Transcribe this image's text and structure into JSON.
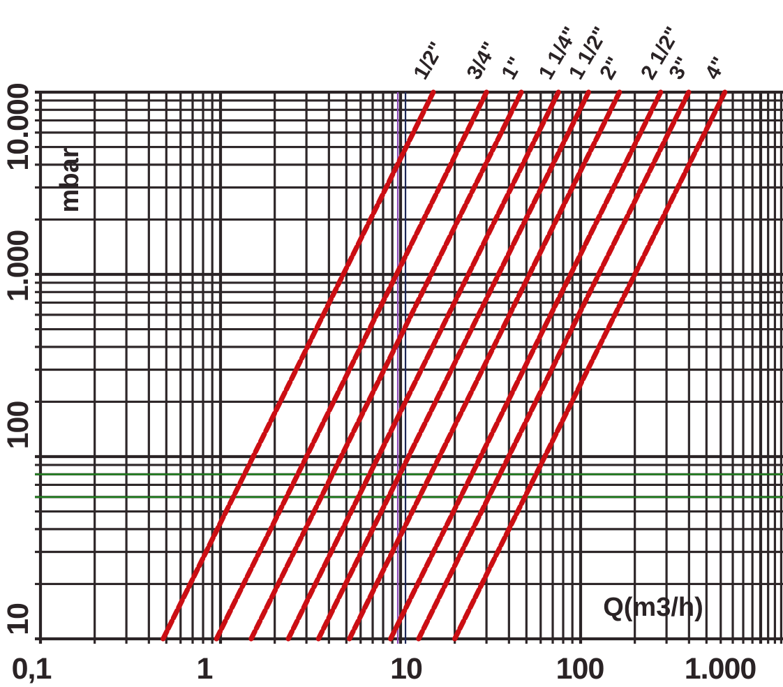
{
  "chart_data": {
    "type": "line",
    "title": "",
    "xlabel": "Q(m3/h)",
    "ylabel": "mbar",
    "x_scale": "log",
    "y_scale": "log",
    "xlim": [
      0.1,
      1300
    ],
    "ylim": [
      10,
      10000
    ],
    "grid": "log-log with minor decade lines",
    "legend_position": "rotated labels above top axis at each line end",
    "x_tick_labels": [
      {
        "value": 0.1,
        "label": "0,1"
      },
      {
        "value": 1,
        "label": "1"
      },
      {
        "value": 10,
        "label": "10"
      },
      {
        "value": 100,
        "label": "100"
      },
      {
        "value": 1000,
        "label": "1.000"
      }
    ],
    "y_tick_labels": [
      {
        "value": 10,
        "label": "10"
      },
      {
        "value": 100,
        "label": "100"
      },
      {
        "value": 1000,
        "label": "1.000"
      },
      {
        "value": 10000,
        "label": "10.000"
      }
    ],
    "series": [
      {
        "name": "1/2\"",
        "points": [
          [
            0.48,
            10
          ],
          [
            15.2,
            10000
          ]
        ]
      },
      {
        "name": "3/4\"",
        "points": [
          [
            0.95,
            10
          ],
          [
            30.0,
            10000
          ]
        ]
      },
      {
        "name": "1\"",
        "points": [
          [
            1.48,
            10
          ],
          [
            46.8,
            10000
          ]
        ]
      },
      {
        "name": "1 1/4\"",
        "points": [
          [
            2.38,
            10
          ],
          [
            75.3,
            10000
          ]
        ]
      },
      {
        "name": "1 1/2\"",
        "points": [
          [
            3.5,
            10
          ],
          [
            110.7,
            10000
          ]
        ]
      },
      {
        "name": "2\"",
        "points": [
          [
            5.2,
            10
          ],
          [
            164.4,
            10000
          ]
        ]
      },
      {
        "name": "2 1/2\"",
        "points": [
          [
            8.8,
            10
          ],
          [
            278.3,
            10000
          ]
        ]
      },
      {
        "name": "3\"",
        "points": [
          [
            12.6,
            10
          ],
          [
            398.4,
            10000
          ]
        ]
      },
      {
        "name": "4\"",
        "points": [
          [
            20.0,
            10
          ],
          [
            632.5,
            10000
          ]
        ]
      }
    ],
    "reference_lines": {
      "horizontal": [
        {
          "value": 80,
          "color": "#20821f"
        },
        {
          "value": 60,
          "color": "#20821f"
        }
      ],
      "vertical": [
        {
          "value": 9.65,
          "color": "#8b46b8"
        },
        {
          "value": 10.65,
          "color": "#1c2757"
        }
      ]
    },
    "colors": {
      "series": "#cb0e13",
      "grid": "#2e2729",
      "text": "#2a2325",
      "background": "#ffffff"
    }
  }
}
